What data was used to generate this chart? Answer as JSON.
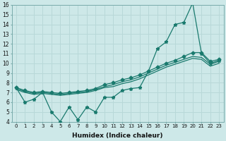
{
  "xlabel": "Humidex (Indice chaleur)",
  "bg_color": "#cde8e8",
  "line_color": "#1a7a6e",
  "grid_color": "#b8d8d8",
  "xlim": [
    -0.5,
    23.5
  ],
  "ylim": [
    4,
    16
  ],
  "xticks": [
    0,
    1,
    2,
    3,
    4,
    5,
    6,
    7,
    8,
    9,
    10,
    11,
    12,
    13,
    14,
    15,
    16,
    17,
    18,
    19,
    20,
    21,
    22,
    23
  ],
  "yticks": [
    4,
    5,
    6,
    7,
    8,
    9,
    10,
    11,
    12,
    13,
    14,
    15,
    16
  ],
  "series": [
    {
      "x": [
        0,
        1,
        2,
        3,
        4,
        5,
        6,
        7,
        8,
        9,
        10,
        11,
        12,
        13,
        14,
        15,
        16,
        17,
        18,
        19,
        20,
        21,
        22,
        23
      ],
      "y": [
        7.5,
        6.0,
        6.3,
        7.0,
        5.0,
        4.0,
        5.5,
        4.2,
        5.5,
        5.0,
        6.5,
        6.5,
        7.2,
        7.4,
        7.5,
        9.2,
        11.5,
        12.2,
        14.0,
        14.2,
        16.2,
        11.0,
        10.0,
        10.3
      ],
      "marker": "*",
      "markersize": 3.5,
      "linewidth": 0.9
    },
    {
      "x": [
        0,
        1,
        2,
        3,
        4,
        5,
        6,
        7,
        8,
        9,
        10,
        11,
        12,
        13,
        14,
        15,
        16,
        17,
        18,
        19,
        20,
        21,
        22,
        23
      ],
      "y": [
        7.5,
        7.2,
        7.0,
        7.1,
        7.0,
        6.9,
        7.0,
        7.1,
        7.2,
        7.4,
        7.8,
        8.0,
        8.3,
        8.5,
        8.8,
        9.2,
        9.6,
        10.0,
        10.3,
        10.7,
        11.1,
        11.1,
        10.2,
        10.4
      ],
      "marker": "D",
      "markersize": 2.5,
      "linewidth": 0.9
    },
    {
      "x": [
        0,
        1,
        2,
        3,
        4,
        5,
        6,
        7,
        8,
        9,
        10,
        11,
        12,
        13,
        14,
        15,
        16,
        17,
        18,
        19,
        20,
        21,
        22,
        23
      ],
      "y": [
        7.4,
        7.1,
        6.9,
        7.0,
        6.9,
        6.8,
        6.9,
        7.0,
        7.1,
        7.3,
        7.6,
        7.8,
        8.1,
        8.3,
        8.6,
        9.0,
        9.4,
        9.8,
        10.1,
        10.4,
        10.7,
        10.6,
        9.9,
        10.2
      ],
      "marker": null,
      "markersize": 0,
      "linewidth": 0.9
    },
    {
      "x": [
        0,
        1,
        2,
        3,
        4,
        5,
        6,
        7,
        8,
        9,
        10,
        11,
        12,
        13,
        14,
        15,
        16,
        17,
        18,
        19,
        20,
        21,
        22,
        23
      ],
      "y": [
        7.3,
        7.0,
        6.8,
        6.9,
        6.8,
        6.7,
        6.8,
        6.9,
        7.0,
        7.2,
        7.5,
        7.6,
        7.9,
        8.1,
        8.4,
        8.8,
        9.2,
        9.6,
        9.9,
        10.2,
        10.5,
        10.4,
        9.7,
        10.0
      ],
      "marker": null,
      "markersize": 0,
      "linewidth": 0.9
    }
  ]
}
